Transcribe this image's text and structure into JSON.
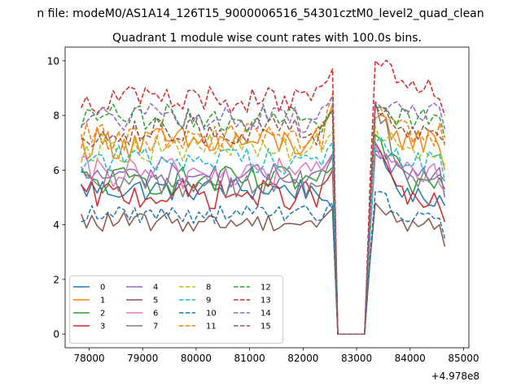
{
  "figure": {
    "suptitle": "n file: modeM0/AS1A14_126T15_9000006516_54301cztM0_level2_quad_clean",
    "title": "Quadrant 1 module wise count rates with 100.0s bins.",
    "offset_label": "+4.978e8"
  },
  "chart_data": {
    "type": "line",
    "title": "Quadrant 1 module wise count rates with 100.0s bins.",
    "xlabel": "",
    "ylabel": "",
    "x_offset": 497800000,
    "xlim": [
      77550,
      85100
    ],
    "ylim": [
      -0.5,
      10.5
    ],
    "x_ticks": [
      78000,
      79000,
      80000,
      81000,
      82000,
      83000,
      84000,
      85000
    ],
    "y_ticks": [
      0,
      2,
      4,
      6,
      8,
      10
    ],
    "grid": false,
    "legend": {
      "placement": "lower-left",
      "ncol": 4
    },
    "x": {
      "seg1_start": 77850,
      "seg1_step": 100,
      "seg1_count": 48,
      "gap_points": [
        82650,
        83150
      ],
      "seg2_start": 83250,
      "seg2_step": 100,
      "seg2_count": 15
    },
    "series": [
      {
        "name": "0",
        "color": "#1f77b4",
        "style": "solid",
        "level": 5.3,
        "amp": 0.25,
        "edge": 4.6,
        "peak": 6.7,
        "tail": 5.0,
        "end": 4.7
      },
      {
        "name": "1",
        "color": "#ff7f0e",
        "style": "solid",
        "level": 7.0,
        "amp": 0.35,
        "edge": 8.4,
        "peak": 7.9,
        "tail": 7.1,
        "end": 6.0
      },
      {
        "name": "2",
        "color": "#2ca02c",
        "style": "solid",
        "level": 5.6,
        "amp": 0.3,
        "edge": 6.1,
        "peak": 7.3,
        "tail": 5.5,
        "end": 5.3
      },
      {
        "name": "3",
        "color": "#d62728",
        "style": "solid",
        "level": 5.1,
        "amp": 0.3,
        "edge": 6.0,
        "peak": 7.0,
        "tail": 4.8,
        "end": 4.1
      },
      {
        "name": "4",
        "color": "#9467bd",
        "style": "solid",
        "level": 5.8,
        "amp": 0.25,
        "edge": 6.6,
        "peak": 6.6,
        "tail": 5.8,
        "end": 5.0
      },
      {
        "name": "5",
        "color": "#8c564b",
        "style": "solid",
        "level": 4.1,
        "amp": 0.2,
        "edge": 4.6,
        "peak": 4.8,
        "tail": 4.0,
        "end": 3.2
      },
      {
        "name": "6",
        "color": "#e377c2",
        "style": "solid",
        "level": 5.9,
        "amp": 0.35,
        "edge": 6.5,
        "peak": 6.9,
        "tail": 5.9,
        "end": 5.2
      },
      {
        "name": "7",
        "color": "#7f7f7f",
        "style": "solid",
        "level": 5.5,
        "amp": 0.3,
        "edge": 6.5,
        "peak": 8.5,
        "tail": 5.7,
        "end": 5.6
      },
      {
        "name": "8",
        "color": "#bcbd22",
        "style": "dashed",
        "level": 6.8,
        "amp": 0.3,
        "edge": 7.4,
        "peak": 7.6,
        "tail": 6.8,
        "end": 6.2
      },
      {
        "name": "9",
        "color": "#17becf",
        "style": "dashed",
        "level": 6.4,
        "amp": 0.3,
        "edge": 7.0,
        "peak": 7.0,
        "tail": 6.3,
        "end": 5.6
      },
      {
        "name": "10",
        "color": "#1f77b4",
        "style": "dashed",
        "level": 4.4,
        "amp": 0.2,
        "edge": 4.8,
        "peak": 5.2,
        "tail": 4.3,
        "end": 3.5
      },
      {
        "name": "11",
        "color": "#ff7f0e",
        "style": "dashed",
        "level": 7.2,
        "amp": 0.3,
        "edge": 8.8,
        "peak": 8.3,
        "tail": 7.3,
        "end": 6.9
      },
      {
        "name": "12",
        "color": "#2ca02c",
        "style": "dashed",
        "level": 7.9,
        "amp": 0.3,
        "edge": 8.1,
        "peak": 8.3,
        "tail": 7.9,
        "end": 7.2
      },
      {
        "name": "13",
        "color": "#d62728",
        "style": "dashed",
        "level": 8.6,
        "amp": 0.3,
        "edge": 9.7,
        "peak": 10.0,
        "tail": 8.9,
        "end": 8.0
      },
      {
        "name": "14",
        "color": "#9467bd",
        "style": "dashed",
        "level": 7.9,
        "amp": 0.3,
        "edge": 8.7,
        "peak": 8.5,
        "tail": 8.1,
        "end": 7.5
      },
      {
        "name": "15",
        "color": "#8c564b",
        "style": "dashed",
        "level": 7.4,
        "amp": 0.3,
        "edge": 8.2,
        "peak": 8.4,
        "tail": 7.4,
        "end": 7.0
      }
    ]
  }
}
